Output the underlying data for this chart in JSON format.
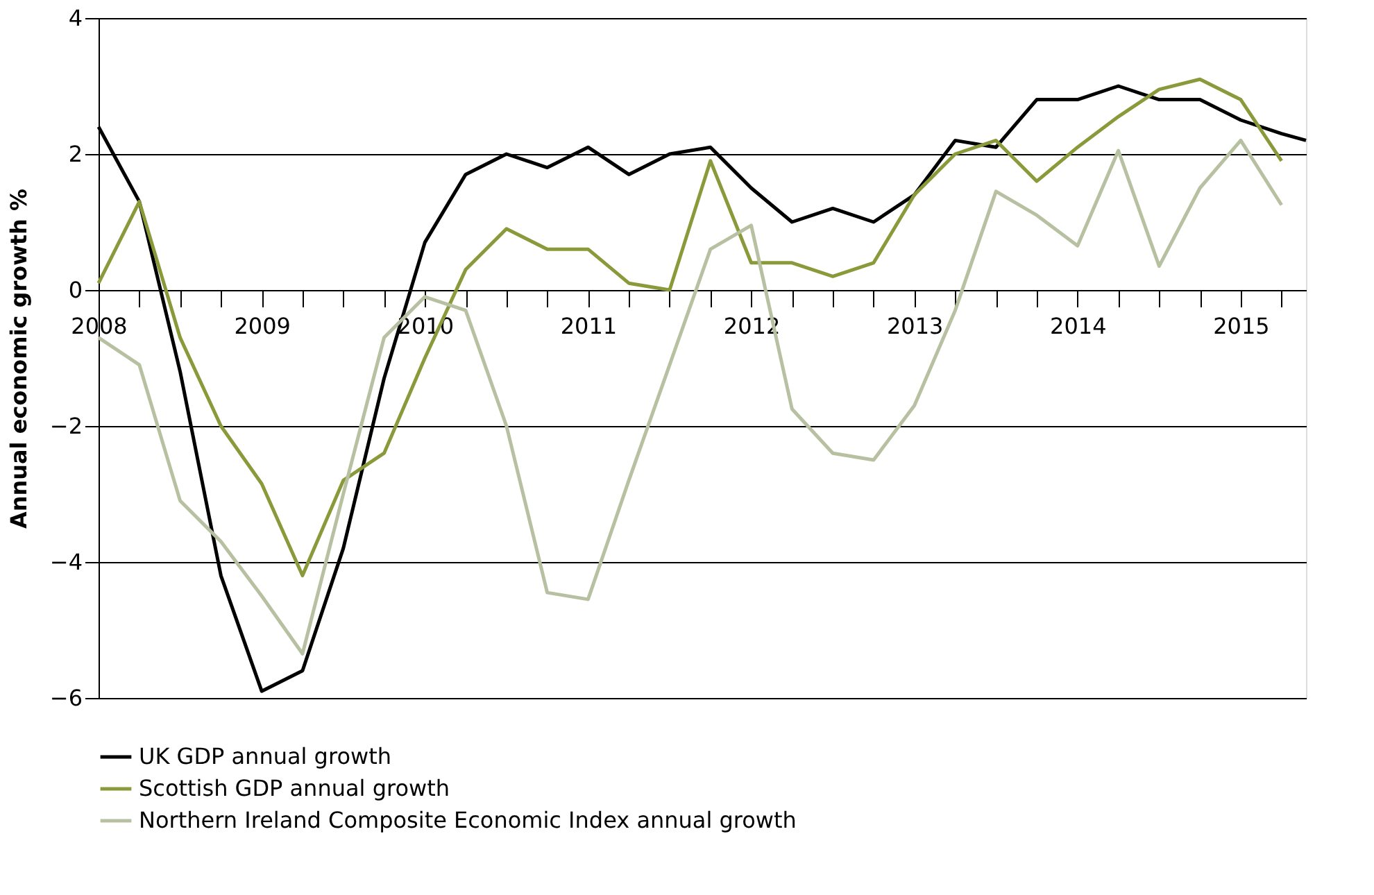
{
  "chart_data": {
    "type": "line",
    "ylabel": "Annual economic growth %",
    "x": [
      2008.0,
      2008.25,
      2008.5,
      2008.75,
      2009.0,
      2009.25,
      2009.5,
      2009.75,
      2010.0,
      2010.25,
      2010.5,
      2010.75,
      2011.0,
      2011.25,
      2011.5,
      2011.75,
      2012.0,
      2012.25,
      2012.5,
      2012.75,
      2013.0,
      2013.25,
      2013.5,
      2013.75,
      2014.0,
      2014.25,
      2014.5,
      2014.75,
      2015.0,
      2015.25
    ],
    "series": [
      {
        "name": "UK GDP annual growth",
        "color": "#000000",
        "x": [
          2008.0,
          2008.25,
          2008.5,
          2008.75,
          2009.0,
          2009.25,
          2009.5,
          2009.75,
          2010.0,
          2010.25,
          2010.5,
          2010.75,
          2011.0,
          2011.25,
          2011.5,
          2011.75,
          2012.0,
          2012.25,
          2012.5,
          2012.75,
          2013.0,
          2013.25,
          2013.5,
          2013.75,
          2014.0,
          2014.25,
          2014.5,
          2014.75,
          2015.0,
          2015.25,
          2015.4
        ],
        "values": [
          2.4,
          1.3,
          -1.2,
          -4.2,
          -5.9,
          -5.6,
          -3.8,
          -1.3,
          0.7,
          1.7,
          2.0,
          1.8,
          2.1,
          1.7,
          2.0,
          2.1,
          1.5,
          1.0,
          1.2,
          1.0,
          1.4,
          2.2,
          2.1,
          2.8,
          2.8,
          3.0,
          2.8,
          2.8,
          2.5,
          2.3,
          2.2
        ]
      },
      {
        "name": "Scottish GDP annual growth",
        "color": "#8a9a3a",
        "values": [
          0.1,
          1.3,
          -0.7,
          -2.0,
          -2.85,
          -4.2,
          -2.8,
          -2.4,
          -1.0,
          0.3,
          0.9,
          0.6,
          0.6,
          0.1,
          0.0,
          1.9,
          0.4,
          0.4,
          0.2,
          0.4,
          1.4,
          2.0,
          2.2,
          1.6,
          2.1,
          2.55,
          2.95,
          3.1,
          2.8,
          1.9
        ]
      },
      {
        "name": "Northern Ireland Composite Economic Index annual growth",
        "color": "#b7c0a0",
        "values": [
          -0.7,
          -1.1,
          -3.1,
          -3.7,
          -4.5,
          -5.35,
          -3.0,
          -0.7,
          -0.1,
          -0.3,
          -2.0,
          -4.45,
          -4.55,
          -2.8,
          -1.1,
          0.6,
          0.95,
          -1.75,
          -2.4,
          -2.5,
          -1.7,
          -0.3,
          1.45,
          1.1,
          0.65,
          2.05,
          0.35,
          1.5,
          2.2,
          1.25
        ]
      }
    ],
    "xlim": [
      2008.0,
      2015.4
    ],
    "xticks": [
      2008,
      {
        "value": 2008.25,
        "label": null
      },
      {
        "value": 2008.5,
        "label": null
      },
      {
        "value": 2008.75,
        "label": null
      },
      2009,
      {
        "value": 2009.25,
        "label": null
      },
      {
        "value": 2009.5,
        "label": null
      },
      {
        "value": 2009.75,
        "label": null
      },
      2010,
      {
        "value": 2010.25,
        "label": null
      },
      {
        "value": 2010.5,
        "label": null
      },
      {
        "value": 2010.75,
        "label": null
      },
      2011,
      {
        "value": 2011.25,
        "label": null
      },
      {
        "value": 2011.5,
        "label": null
      },
      {
        "value": 2011.75,
        "label": null
      },
      2012,
      {
        "value": 2012.25,
        "label": null
      },
      {
        "value": 2012.5,
        "label": null
      },
      {
        "value": 2012.75,
        "label": null
      },
      2013,
      {
        "value": 2013.25,
        "label": null
      },
      {
        "value": 2013.5,
        "label": null
      },
      {
        "value": 2013.75,
        "label": null
      },
      2014,
      {
        "value": 2014.25,
        "label": null
      },
      {
        "value": 2014.5,
        "label": null
      },
      {
        "value": 2014.75,
        "label": null
      },
      2015,
      {
        "value": 2015.25,
        "label": null
      }
    ],
    "ylim": [
      -6,
      4
    ],
    "yticks": [
      -6,
      -4,
      -2,
      0,
      2,
      4
    ],
    "grid": "y",
    "legend": "bottom"
  }
}
